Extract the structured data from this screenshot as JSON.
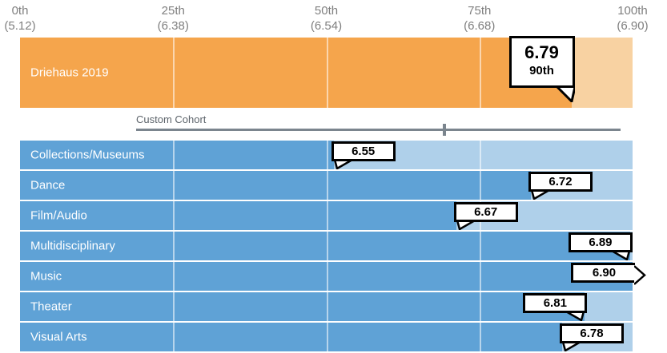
{
  "chart_data": {
    "type": "bar",
    "title": "",
    "orientation": "horizontal-percentile",
    "axis": {
      "xlabel": "",
      "range_values": [
        5.12,
        6.9
      ],
      "ticks": [
        {
          "percentile": "0th",
          "value": "(5.12)",
          "pct": 0
        },
        {
          "percentile": "25th",
          "value": "(6.38)",
          "pct": 25
        },
        {
          "percentile": "50th",
          "value": "(6.54)",
          "pct": 50
        },
        {
          "percentile": "75th",
          "value": "(6.68)",
          "pct": 75
        },
        {
          "percentile": "100th",
          "value": "(6.90)",
          "pct": 100
        }
      ]
    },
    "primary": {
      "label": "Driehaus 2019",
      "value": 6.79,
      "value_display": "6.79",
      "percentile": 90,
      "percentile_display": "90th"
    },
    "cohort": {
      "label": "Custom Cohort",
      "marker_pct": 69,
      "rows": [
        {
          "category": "Collections/Museums",
          "value": 6.55,
          "value_display": "6.55",
          "percentile": 51.2,
          "callout_side": "right"
        },
        {
          "category": "Dance",
          "value": 6.72,
          "value_display": "6.72",
          "percentile": 83.4,
          "callout_side": "right"
        },
        {
          "category": "Film/Audio",
          "value": 6.67,
          "value_display": "6.67",
          "percentile": 71.2,
          "callout_side": "right"
        },
        {
          "category": "Multidisciplinary",
          "value": 6.89,
          "value_display": "6.89",
          "percentile": 99.6,
          "callout_side": "left"
        },
        {
          "category": "Music",
          "value": 6.9,
          "value_display": "6.90",
          "percentile": 100,
          "callout_side": "arrow-right"
        },
        {
          "category": "Theater",
          "value": 6.81,
          "value_display": "6.81",
          "percentile": 92.2,
          "callout_side": "left"
        },
        {
          "category": "Visual Arts",
          "value": 6.78,
          "value_display": "6.78",
          "percentile": 88.5,
          "callout_side": "right"
        }
      ]
    },
    "colors": {
      "primary_fill": "#f5a54c",
      "primary_rest": "#f8d2a2",
      "cohort_fill": "#5fa2d6",
      "cohort_rest": "#afd0ea",
      "axis_text": "#7f7f7f",
      "cohort_line": "#7b858e",
      "callout_border": "#000000",
      "callout_bg": "#ffffff"
    },
    "legend": "none",
    "grid": "quartile-separators"
  }
}
